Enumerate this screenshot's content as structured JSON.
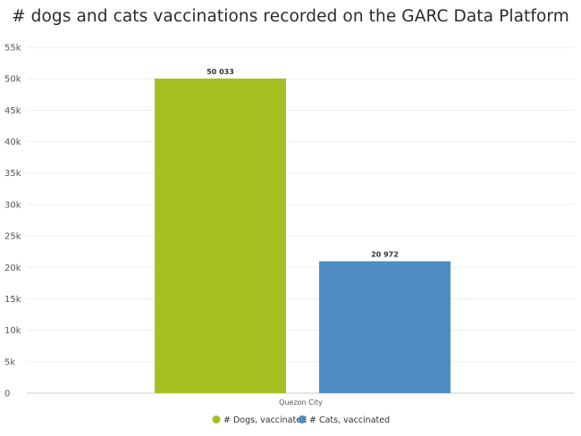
{
  "chart_data": {
    "type": "bar",
    "title": "# dogs and cats vaccinations recorded on the GARC Data Platform",
    "categories": [
      "Quezon City"
    ],
    "series": [
      {
        "name": "# Dogs, vaccinated",
        "values": [
          50033
        ],
        "labels": [
          "50 033"
        ],
        "color": "#a8bf24"
      },
      {
        "name": "# Cats, vaccinated",
        "values": [
          20972
        ],
        "labels": [
          "20 972"
        ],
        "color": "#4f8cc2"
      }
    ],
    "ylim": [
      0,
      55000
    ],
    "yticks": [
      0,
      5000,
      10000,
      15000,
      20000,
      25000,
      30000,
      35000,
      40000,
      45000,
      50000,
      55000
    ],
    "ytick_labels": [
      "0",
      "5k",
      "10k",
      "15k",
      "20k",
      "25k",
      "30k",
      "35k",
      "40k",
      "45k",
      "50k",
      "55k"
    ],
    "xlabel": "",
    "ylabel": "",
    "grid": true,
    "legend_position": "bottom-center"
  }
}
